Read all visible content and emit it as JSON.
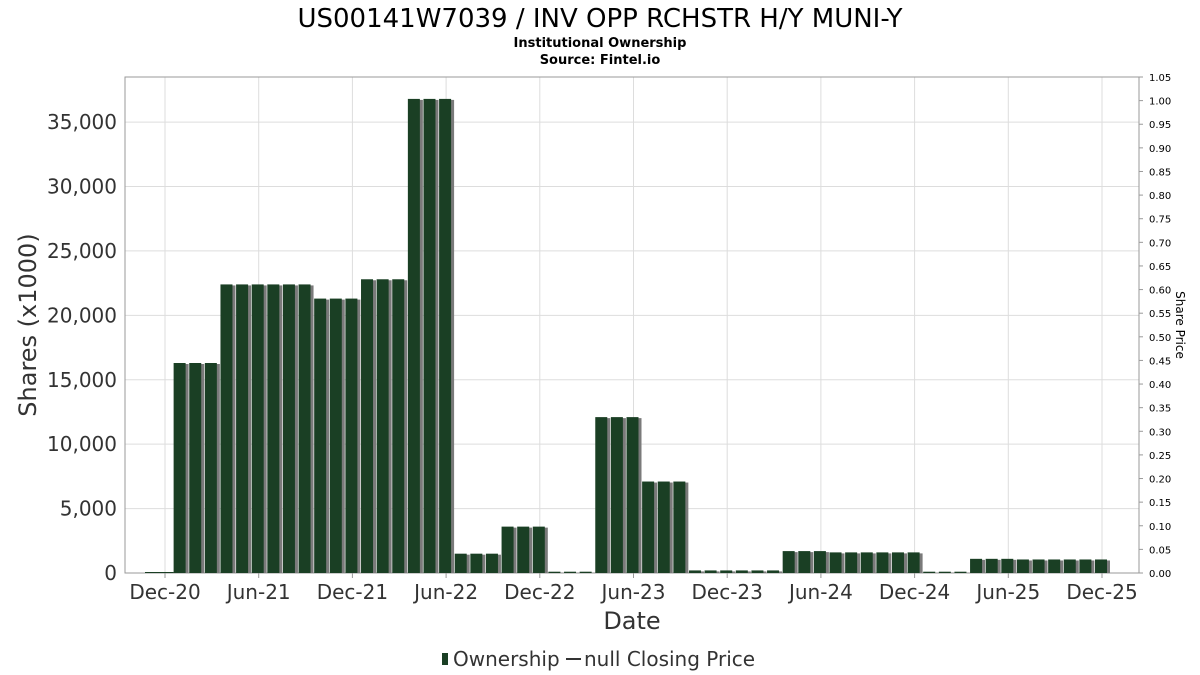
{
  "chart_data": {
    "type": "bar",
    "title": "US00141W7039 / INV OPP RCHSTR H/Y MUNI-Y",
    "subtitles": [
      "Institutional Ownership",
      "Source: Fintel.io"
    ],
    "xlabel": "Date",
    "ylabel": "Shares (x1000)",
    "y2label": "Share Price",
    "ylim": [
      0,
      38500
    ],
    "y2lim": [
      0,
      1.05
    ],
    "yticks": [
      "0",
      "5,000",
      "10,000",
      "15,000",
      "20,000",
      "25,000",
      "30,000",
      "35,000"
    ],
    "y2ticks": [
      "0.00",
      "0.05",
      "0.10",
      "0.15",
      "0.20",
      "0.25",
      "0.30",
      "0.35",
      "0.40",
      "0.45",
      "0.50",
      "0.55",
      "0.60",
      "0.65",
      "0.70",
      "0.75",
      "0.80",
      "0.85",
      "0.90",
      "0.95",
      "1.00",
      "1.05"
    ],
    "xticks": [
      "Dec-20",
      "Jun-21",
      "Dec-21",
      "Jun-22",
      "Dec-22",
      "Jun-23",
      "Dec-23",
      "Jun-24",
      "Dec-24",
      "Jun-25",
      "Dec-25"
    ],
    "grid": true,
    "legend_position": "bottom",
    "colors": {
      "bar": "#1a3f24",
      "bar_shadow": "#7a7a7a",
      "grid": "#dddddd",
      "axis": "#999999"
    },
    "series": [
      {
        "name": "Ownership",
        "periods": [
          "2021-Q1",
          "2021-Q2",
          "2021-Q3",
          "2021-Q4",
          "2022-Q1",
          "2022-Q2",
          "2022-Q3",
          "2022-Q4",
          "2023-Q1",
          "2023-Q2",
          "2023-Q3",
          "2023-Q4",
          "2024-Q1",
          "2024-Q2",
          "2024-Q3",
          "2024-Q4",
          "2025-Q1",
          "2025-Q2",
          "2025-Q3",
          "2025-Q4"
        ],
        "values": [
          16300,
          22400,
          22400,
          21300,
          22800,
          36800,
          1500,
          3600,
          100,
          12100,
          7100,
          200,
          200,
          1700,
          1600,
          1600,
          100,
          1100,
          1050,
          1050
        ]
      }
    ],
    "legend": [
      {
        "label": "Ownership",
        "marker": "bar"
      },
      {
        "label": "null Closing Price",
        "marker": "line"
      }
    ]
  }
}
